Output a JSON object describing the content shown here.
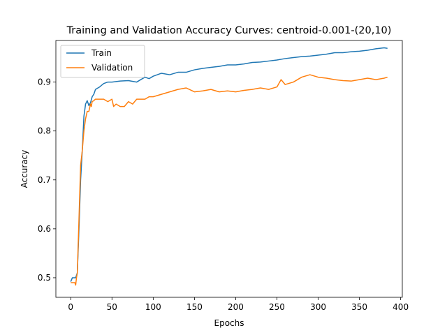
{
  "chart_data": {
    "type": "line",
    "title": "Training and Validation Accuracy Curves: centroid-0.001-(20,10)",
    "xlabel": "Epochs",
    "ylabel": "Accuracy",
    "xlim": [
      -18,
      402
    ],
    "ylim": [
      0.46,
      0.985
    ],
    "xticks": [
      0,
      50,
      100,
      150,
      200,
      250,
      300,
      350,
      400
    ],
    "yticks": [
      0.5,
      0.6,
      0.7,
      0.8,
      0.9
    ],
    "ytick_labels": [
      "0.5",
      "0.6",
      "0.7",
      "0.8",
      "0.9"
    ],
    "grid": false,
    "legend_position": "top-left",
    "series": [
      {
        "name": "Train",
        "color": "#1f77b4",
        "x": [
          0,
          2,
          4,
          6,
          8,
          10,
          12,
          14,
          16,
          18,
          20,
          22,
          24,
          26,
          28,
          30,
          35,
          40,
          45,
          50,
          60,
          70,
          80,
          85,
          90,
          95,
          100,
          110,
          120,
          130,
          140,
          150,
          160,
          170,
          180,
          190,
          200,
          210,
          220,
          230,
          240,
          250,
          260,
          270,
          280,
          290,
          300,
          310,
          320,
          330,
          340,
          350,
          360,
          370,
          380,
          384
        ],
        "y": [
          0.492,
          0.5,
          0.5,
          0.5,
          0.51,
          0.6,
          0.7,
          0.76,
          0.83,
          0.855,
          0.862,
          0.852,
          0.858,
          0.87,
          0.875,
          0.885,
          0.89,
          0.897,
          0.9,
          0.9,
          0.902,
          0.903,
          0.9,
          0.905,
          0.91,
          0.907,
          0.912,
          0.918,
          0.915,
          0.92,
          0.92,
          0.925,
          0.928,
          0.93,
          0.932,
          0.935,
          0.935,
          0.937,
          0.94,
          0.941,
          0.943,
          0.945,
          0.948,
          0.95,
          0.952,
          0.953,
          0.955,
          0.957,
          0.96,
          0.96,
          0.962,
          0.963,
          0.965,
          0.968,
          0.97,
          0.969
        ]
      },
      {
        "name": "Validation",
        "color": "#ff7f0e",
        "x": [
          0,
          2,
          4,
          5,
          6,
          7,
          8,
          10,
          12,
          14,
          16,
          18,
          20,
          22,
          24,
          25,
          26,
          28,
          30,
          35,
          40,
          45,
          50,
          52,
          55,
          60,
          65,
          70,
          75,
          80,
          85,
          90,
          95,
          100,
          110,
          120,
          130,
          140,
          150,
          160,
          170,
          180,
          190,
          200,
          210,
          220,
          230,
          240,
          250,
          255,
          260,
          270,
          280,
          290,
          300,
          310,
          320,
          330,
          340,
          350,
          360,
          370,
          380,
          384
        ],
        "y": [
          0.49,
          0.49,
          0.49,
          0.49,
          0.485,
          0.5,
          0.51,
          0.62,
          0.73,
          0.76,
          0.8,
          0.825,
          0.84,
          0.84,
          0.855,
          0.85,
          0.86,
          0.862,
          0.865,
          0.865,
          0.865,
          0.86,
          0.865,
          0.85,
          0.855,
          0.85,
          0.85,
          0.86,
          0.855,
          0.865,
          0.865,
          0.865,
          0.87,
          0.87,
          0.875,
          0.88,
          0.885,
          0.888,
          0.88,
          0.882,
          0.885,
          0.88,
          0.882,
          0.88,
          0.883,
          0.885,
          0.888,
          0.885,
          0.89,
          0.905,
          0.895,
          0.9,
          0.91,
          0.915,
          0.91,
          0.908,
          0.905,
          0.903,
          0.902,
          0.905,
          0.908,
          0.905,
          0.908,
          0.91
        ]
      }
    ]
  }
}
